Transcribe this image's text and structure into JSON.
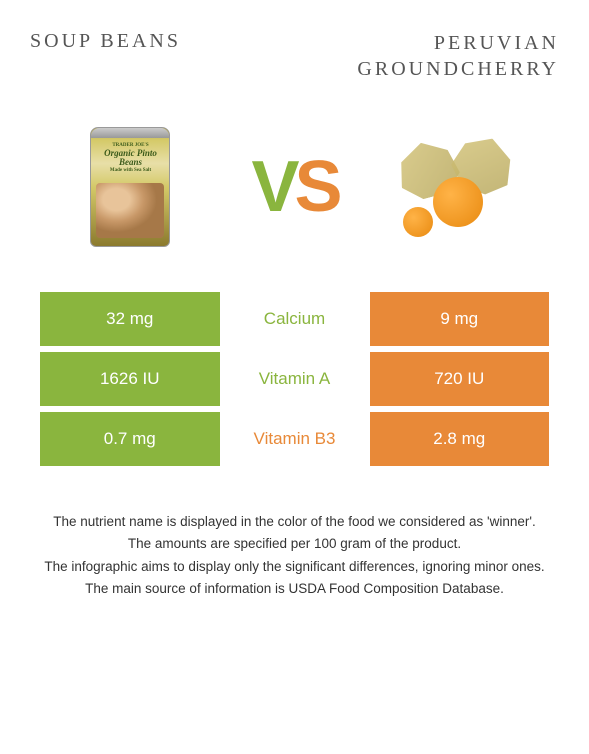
{
  "titles": {
    "left": "SOUP BEANS",
    "right_line1": "PERUVIAN",
    "right_line2": "GROUNDCHERRY"
  },
  "vs": {
    "v": "V",
    "s": "S"
  },
  "can": {
    "brand": "TRADER JOE'S",
    "name": "Organic Pinto Beans",
    "sub": "Made with Sea Salt"
  },
  "colors": {
    "green": "#8ab53e",
    "orange": "#e88938"
  },
  "rows": [
    {
      "left": "32 mg",
      "mid": "Calcium",
      "right": "9 mg",
      "winner": "left"
    },
    {
      "left": "1626 IU",
      "mid": "Vitamin A",
      "right": "720 IU",
      "winner": "left"
    },
    {
      "left": "0.7 mg",
      "mid": "Vitamin B3",
      "right": "2.8 mg",
      "winner": "right"
    }
  ],
  "footer": {
    "p1": "The nutrient name is displayed in the color of the food we considered as 'winner'.",
    "p2": "The amounts are specified per 100 gram of the product.",
    "p3": "The infographic aims to display only the significant differences, ignoring minor ones.",
    "p4": "The main source of information is USDA Food Composition Database."
  }
}
